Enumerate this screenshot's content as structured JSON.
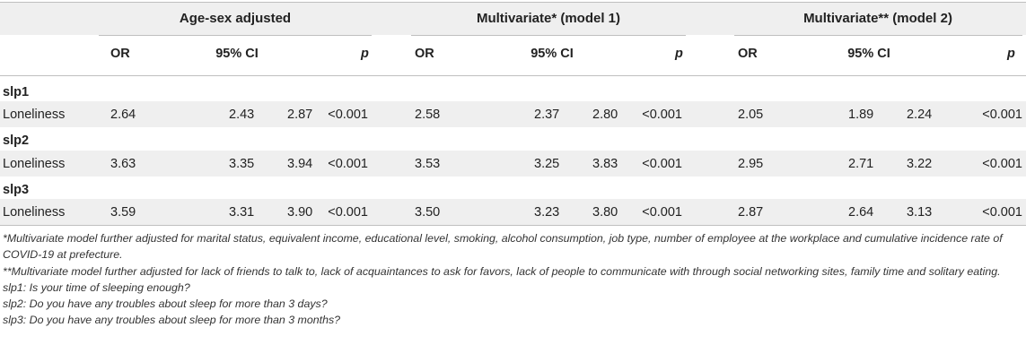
{
  "groups": [
    {
      "label": "Age-sex adjusted"
    },
    {
      "label": "Multivariate* (model 1)"
    },
    {
      "label": "Multivariate** (model 2)"
    }
  ],
  "columns": {
    "or": "OR",
    "ci": "95% CI",
    "p": "p"
  },
  "sections": [
    {
      "title": "slp1",
      "row": {
        "label": "Loneliness",
        "values": [
          "2.64",
          "2.43",
          "2.87",
          "<0.001",
          "2.58",
          "2.37",
          "2.80",
          "<0.001",
          "2.05",
          "1.89",
          "2.24",
          "<0.001"
        ]
      }
    },
    {
      "title": "slp2",
      "row": {
        "label": "Loneliness",
        "values": [
          "3.63",
          "3.35",
          "3.94",
          "<0.001",
          "3.53",
          "3.25",
          "3.83",
          "<0.001",
          "2.95",
          "2.71",
          "3.22",
          "<0.001"
        ]
      }
    },
    {
      "title": "slp3",
      "row": {
        "label": "Loneliness",
        "values": [
          "3.59",
          "3.31",
          "3.90",
          "<0.001",
          "3.50",
          "3.23",
          "3.80",
          "<0.001",
          "2.87",
          "2.64",
          "3.13",
          "<0.001"
        ]
      }
    }
  ],
  "footnotes": [
    "*Multivariate model further adjusted for marital status, equivalent income, educational level, smoking, alcohol consumption, job type, number of employee at the workplace and cumulative incidence rate of COVID-19 at prefecture.",
    "**Multivariate model further adjusted for lack of friends to talk to, lack of acquaintances to ask for favors, lack of people to communicate with through social networking sites, family time and solitary eating.",
    "slp1: Is your time of sleeping enough?",
    "slp2: Do you have any troubles about sleep for more than 3 days?",
    "slp3: Do you have any troubles about sleep for more than 3 months?"
  ]
}
